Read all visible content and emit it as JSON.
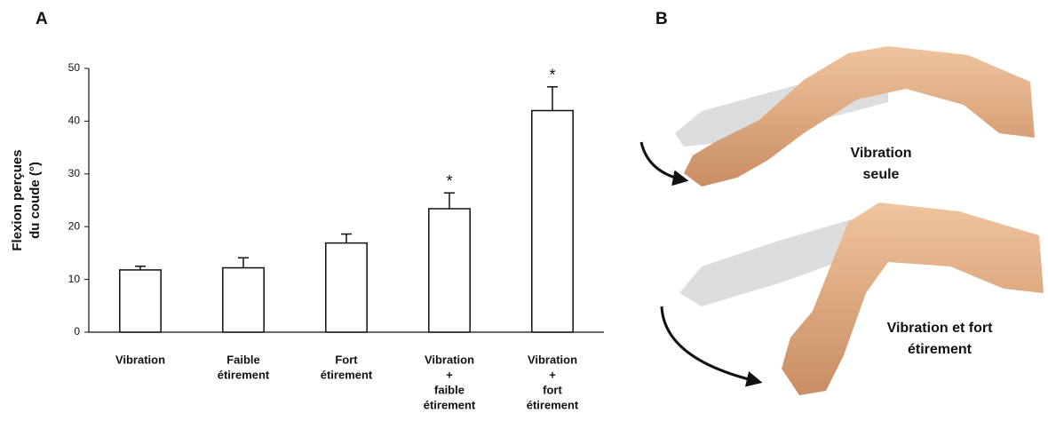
{
  "chart_data": {
    "type": "bar",
    "panel_label": "A",
    "y_label": [
      "Flexion perçues",
      "du coude (°)"
    ],
    "categories": [
      [
        "Vibration"
      ],
      [
        "Faible",
        "étirement"
      ],
      [
        "Fort",
        "étirement"
      ],
      [
        "Vibration",
        "+",
        "faible",
        "étirement"
      ],
      [
        "Vibration",
        "+",
        "fort",
        "étirement"
      ]
    ],
    "values": [
      11.8,
      12.2,
      16.9,
      23.4,
      42
    ],
    "errors": [
      0.7,
      1.9,
      1.7,
      3.0,
      4.5
    ],
    "significance": [
      null,
      null,
      null,
      "*",
      "*"
    ],
    "color": "#ffffff",
    "edge_color": "#111111",
    "ylim": [
      0,
      50
    ],
    "yticks": [
      0,
      10,
      20,
      30,
      40,
      50
    ],
    "grid": false
  },
  "illustration": {
    "panel_label": "B",
    "captions": [
      [
        "Vibration",
        "seule"
      ],
      [
        "Vibration et fort",
        "étirement"
      ]
    ]
  }
}
